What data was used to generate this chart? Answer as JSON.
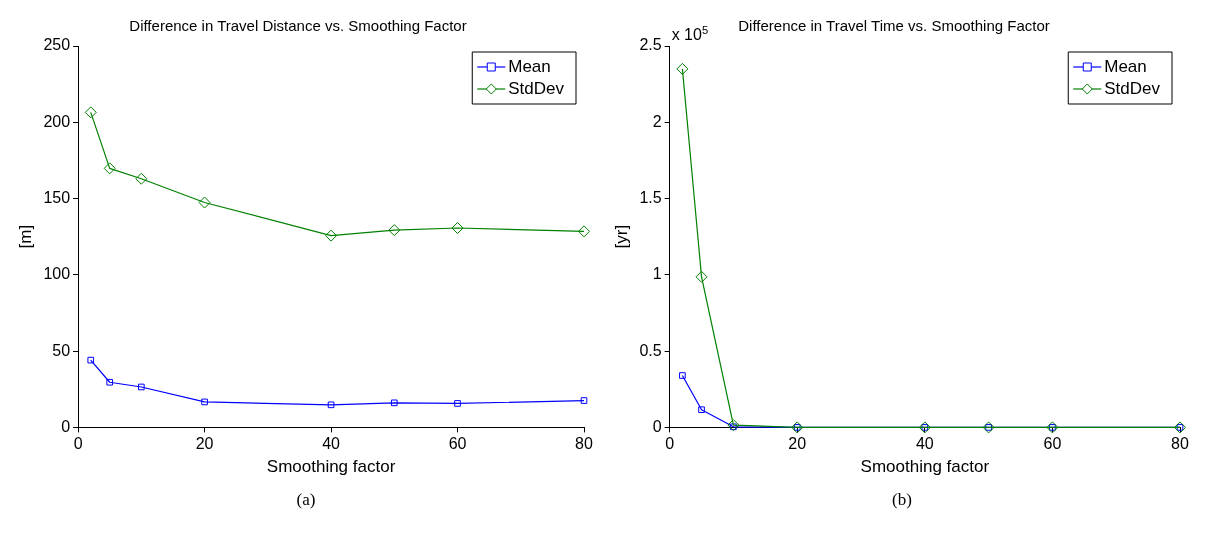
{
  "chart_data": [
    {
      "type": "line",
      "title": "Difference in Travel Distance vs. Smoothing Factor",
      "subtitle": "(a)",
      "xlabel": "Smoothing factor",
      "ylabel": "[m]",
      "x": [
        2,
        5,
        10,
        20,
        40,
        50,
        60,
        80
      ],
      "series": [
        {
          "name": "Mean",
          "color": "#0000ff",
          "marker": "square",
          "values": [
            44.1,
            29.6,
            26.5,
            16.7,
            14.8,
            16.1,
            15.7,
            17.6
          ]
        },
        {
          "name": "StdDev",
          "color": "#008000",
          "marker": "diamond",
          "values": [
            206.5,
            169.8,
            163,
            147.4,
            125.7,
            129.3,
            130.7,
            128.5
          ]
        }
      ],
      "xlim": [
        0,
        80
      ],
      "xticks": [
        0,
        20,
        40,
        60,
        80
      ],
      "ylim": [
        0,
        250
      ],
      "yticks": [
        0,
        50,
        100,
        150,
        200,
        250
      ],
      "grid": false,
      "legend": "top right",
      "line_style": "solid"
    },
    {
      "type": "line",
      "title": "Difference in Travel Time vs. Smoothing Factor",
      "subtitle": "(b)",
      "xlabel": "Smoothing factor",
      "ylabel": "[yr]",
      "annotations": [
        "x 10$^{5}$"
      ],
      "x": [
        2,
        5,
        10,
        20,
        40,
        50,
        60,
        80
      ],
      "series": [
        {
          "name": "Mean",
          "color": "#0000ff",
          "marker": "square",
          "values": [
            0.34,
            0.116,
            0.004,
            0,
            0,
            0,
            0,
            0
          ]
        },
        {
          "name": "StdDev",
          "color": "#008000",
          "marker": "diamond",
          "values": [
            2.35,
            0.987,
            0.015,
            0,
            0,
            0,
            0,
            0
          ]
        }
      ],
      "xlim": [
        0,
        80
      ],
      "xticks": [
        0,
        20,
        40,
        60,
        80
      ],
      "ylim": [
        0,
        2.5
      ],
      "yticks": [
        0,
        0.5,
        1,
        1.5,
        2,
        2.5
      ],
      "grid": false,
      "legend": "top right",
      "line_style": "solid"
    }
  ]
}
